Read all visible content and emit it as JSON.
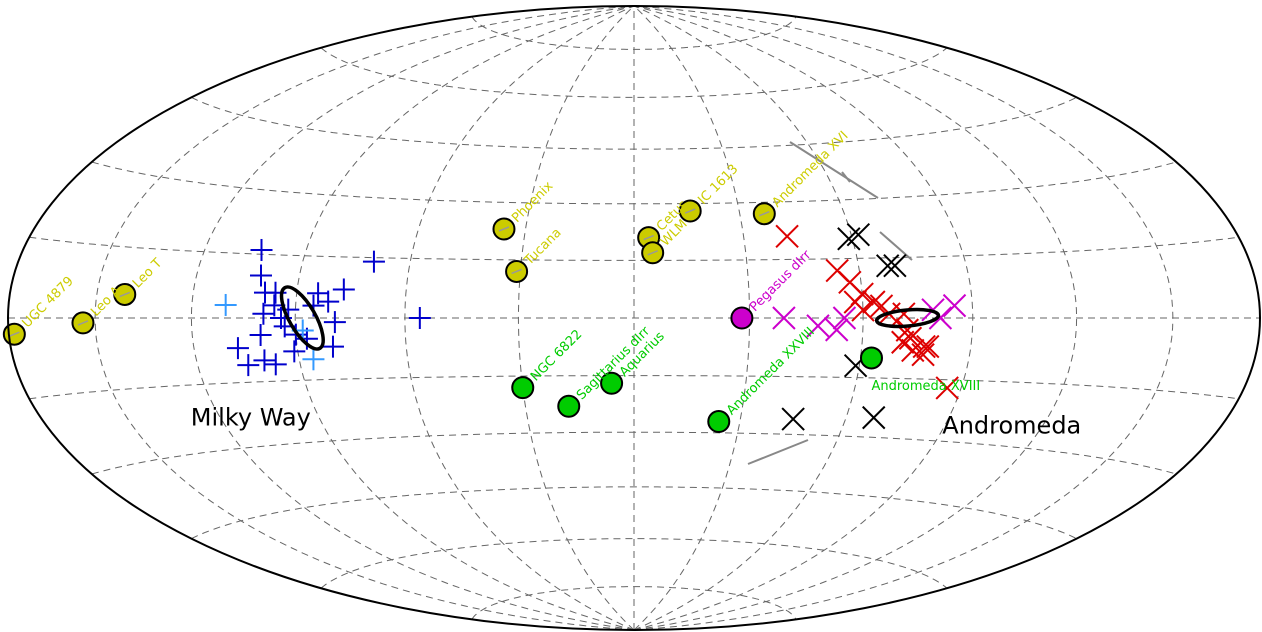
{
  "chart_data": {
    "type": "scatter",
    "projection": "aitoff-hammer",
    "grid": true,
    "colors": {
      "yellow": "#cccc00",
      "green": "#00cc00",
      "magenta": "#cc00cc",
      "blue": "#0000cc",
      "lightblue": "#3399ff",
      "red": "#dd0000",
      "black": "#000000"
    },
    "regions": [
      {
        "name": "Milky Way",
        "pos": [
          -112,
          -25
        ]
      },
      {
        "name": "Andromeda",
        "pos": [
          112,
          -27
        ]
      }
    ],
    "galaxies": [
      {
        "name": "UGC 4879",
        "color": "yellow",
        "pos": [
          -178,
          -3
        ]
      },
      {
        "name": "Leo A",
        "color": "yellow",
        "pos": [
          -154,
          -1
        ]
      },
      {
        "name": "Leo T",
        "color": "yellow",
        "pos": [
          -141,
          5
        ]
      },
      {
        "name": "Phoenix",
        "color": "yellow",
        "pos": [
          -36,
          23
        ]
      },
      {
        "name": "Tucana",
        "color": "yellow",
        "pos": [
          -31,
          12
        ]
      },
      {
        "name": "Cetus",
        "color": "yellow",
        "pos": [
          4,
          21
        ]
      },
      {
        "name": "WLM",
        "color": "yellow",
        "pos": [
          5,
          17
        ]
      },
      {
        "name": "IC 1613",
        "color": "yellow",
        "pos": [
          16,
          28
        ]
      },
      {
        "name": "Andromeda XVI",
        "color": "yellow",
        "pos": [
          37,
          27
        ]
      },
      {
        "name": "Pegasus dIrr",
        "color": "magenta",
        "pos": [
          28,
          0
        ]
      },
      {
        "name": "NGC 6822",
        "color": "green",
        "pos": [
          -30,
          -18
        ]
      },
      {
        "name": "Sagittarius dIrr",
        "color": "green",
        "pos": [
          -18,
          -23
        ]
      },
      {
        "name": "Aquarius",
        "color": "green",
        "pos": [
          -6,
          -17
        ]
      },
      {
        "name": "Andromeda XXVIII",
        "color": "green",
        "pos": [
          24,
          -27
        ]
      },
      {
        "name": "Andromeda XVIII",
        "color": "green",
        "pos": [
          63,
          -10
        ]
      }
    ],
    "series": [
      {
        "color": "blue",
        "marker": "plus",
        "points": [
          [
            -103,
            16
          ],
          [
            -101,
            10
          ],
          [
            -99,
            6
          ],
          [
            -99,
            1
          ],
          [
            -100,
            -4
          ],
          [
            -96,
            6
          ],
          [
            -96,
            3
          ],
          [
            -94,
            0
          ],
          [
            -93,
            -2
          ],
          [
            -92,
            2
          ],
          [
            -90,
            -4
          ],
          [
            -91,
            -8
          ],
          [
            -87,
            -5
          ],
          [
            -85,
            3
          ],
          [
            -84,
            6
          ],
          [
            -81,
            4
          ],
          [
            -79,
            -1
          ],
          [
            -80,
            -7
          ],
          [
            -77,
            7
          ],
          [
            -70,
            14
          ],
          [
            -56,
            0
          ],
          [
            -107,
            -7
          ],
          [
            -105,
            -11
          ],
          [
            -100,
            -10
          ],
          [
            -97,
            -11
          ]
        ]
      },
      {
        "color": "lightblue",
        "marker": "plus",
        "points": [
          [
            -110,
            3
          ],
          [
            -86,
            -10
          ],
          [
            -88,
            -3
          ]
        ]
      },
      {
        "color": "red",
        "marker": "cross",
        "points": [
          [
            42,
            21
          ],
          [
            54,
            12
          ],
          [
            57,
            9
          ],
          [
            60,
            6
          ],
          [
            58,
            4
          ],
          [
            63,
            4
          ],
          [
            60,
            2
          ],
          [
            65,
            3
          ],
          [
            67,
            1
          ],
          [
            71,
            1
          ],
          [
            72,
            -3
          ],
          [
            73,
            -5
          ],
          [
            71,
            -6
          ],
          [
            74,
            -8
          ],
          [
            77,
            -7
          ],
          [
            78,
            -7
          ],
          [
            77,
            -9
          ],
          [
            86,
            -17
          ]
        ]
      },
      {
        "color": "magenta",
        "marker": "cross",
        "points": [
          [
            39,
            0
          ],
          [
            48,
            -2
          ],
          [
            53,
            -3
          ],
          [
            55,
            0
          ],
          [
            79,
            2
          ],
          [
            81,
            0
          ],
          [
            85,
            3
          ]
        ]
      },
      {
        "color": "black",
        "marker": "cross",
        "points": [
          [
            59,
            20
          ],
          [
            62,
            21
          ],
          [
            68,
            13
          ],
          [
            70,
            13
          ],
          [
            59,
            -12
          ],
          [
            45,
            -26
          ],
          [
            68,
            -25
          ]
        ]
      }
    ],
    "ellipses": [
      {
        "center": [
          -88,
          0
        ],
        "rx": 13,
        "ry": 35,
        "rot": -30
      },
      {
        "center": [
          72,
          0
        ],
        "rx": 31,
        "ry": 8,
        "rot": -5
      }
    ]
  }
}
